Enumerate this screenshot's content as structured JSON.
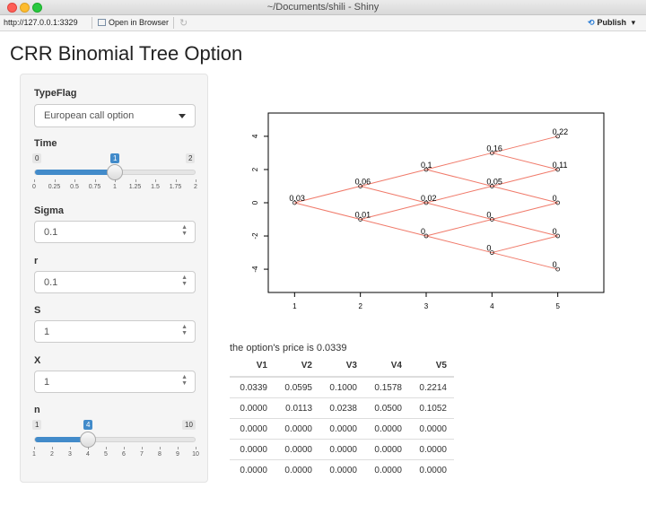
{
  "window": {
    "title": "~/Documents/shili - Shiny"
  },
  "toolbar": {
    "url": "http://127.0.0.1:3329",
    "open_browser": "Open in Browser",
    "publish": "Publish",
    "publish_caret": "▾"
  },
  "app": {
    "title": "CRR Binomial Tree Option"
  },
  "inputs": {
    "typeflag": {
      "label": "TypeFlag",
      "value": "European call option"
    },
    "time": {
      "label": "Time",
      "min": "0",
      "max": "2",
      "value": "1",
      "fraction": 0.5,
      "ticks": [
        "0",
        "0.25",
        "0.5",
        "0.75",
        "1",
        "1.25",
        "1.5",
        "1.75",
        "2"
      ]
    },
    "sigma": {
      "label": "Sigma",
      "value": "0.1"
    },
    "r": {
      "label": "r",
      "value": "0.1"
    },
    "s": {
      "label": "S",
      "value": "1"
    },
    "x": {
      "label": "X",
      "value": "1"
    },
    "n": {
      "label": "n",
      "min": "1",
      "max": "10",
      "value": "4",
      "fraction": 0.3333,
      "ticks": [
        "1",
        "2",
        "3",
        "4",
        "5",
        "6",
        "7",
        "8",
        "9",
        "10"
      ]
    }
  },
  "output": {
    "price_text": "the option's price is 0.0339",
    "table": {
      "headers": [
        "V1",
        "V2",
        "V3",
        "V4",
        "V5"
      ],
      "rows": [
        [
          "0.0339",
          "0.0595",
          "0.1000",
          "0.1578",
          "0.2214"
        ],
        [
          "0.0000",
          "0.0113",
          "0.0238",
          "0.0500",
          "0.1052"
        ],
        [
          "0.0000",
          "0.0000",
          "0.0000",
          "0.0000",
          "0.0000"
        ],
        [
          "0.0000",
          "0.0000",
          "0.0000",
          "0.0000",
          "0.0000"
        ],
        [
          "0.0000",
          "0.0000",
          "0.0000",
          "0.0000",
          "0.0000"
        ]
      ]
    }
  },
  "chart_data": {
    "type": "scatter",
    "xticks": [
      "1",
      "2",
      "3",
      "4",
      "5"
    ],
    "yticks": [
      "-4",
      "-2",
      "0",
      "2",
      "4"
    ],
    "xlim": [
      0.6,
      5.7
    ],
    "ylim": [
      -5.4,
      5.4
    ],
    "line_color": "#f07a6a",
    "nodes": [
      {
        "x": 1,
        "y": 0,
        "label": "0.03"
      },
      {
        "x": 2,
        "y": 1,
        "label": "0.06"
      },
      {
        "x": 2,
        "y": -1,
        "label": "0.01"
      },
      {
        "x": 3,
        "y": 2,
        "label": "0.1"
      },
      {
        "x": 3,
        "y": 0,
        "label": "0.02"
      },
      {
        "x": 3,
        "y": -2,
        "label": "0"
      },
      {
        "x": 4,
        "y": 3,
        "label": "0.16"
      },
      {
        "x": 4,
        "y": 1,
        "label": "0.05"
      },
      {
        "x": 4,
        "y": -1,
        "label": "0"
      },
      {
        "x": 4,
        "y": -3,
        "label": "0"
      },
      {
        "x": 5,
        "y": 4,
        "label": "0.22"
      },
      {
        "x": 5,
        "y": 2,
        "label": "0.11"
      },
      {
        "x": 5,
        "y": 0,
        "label": "0"
      },
      {
        "x": 5,
        "y": -2,
        "label": "0"
      },
      {
        "x": 5,
        "y": -4,
        "label": "0"
      }
    ]
  }
}
